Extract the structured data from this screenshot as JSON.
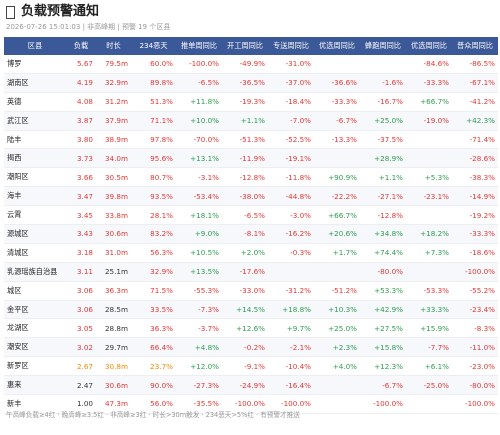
{
  "header": {
    "title": "负载预警通知",
    "subtitle": "2026-07-26 15:01:03 | 非高峰期 | 预警 19 个区县"
  },
  "table": {
    "columns": [
      "区县",
      "负载",
      "时长",
      "234恶天",
      "推单周同比",
      "开工周同比",
      "专送周同比",
      "优选周同比",
      "蜂跑周同比",
      "优选周同比",
      "普众周同比"
    ],
    "rows": [
      {
        "name": "博罗",
        "load": "5.67",
        "load_color": "#e53935",
        "duration": "79.5m",
        "duration_color": "#e53935",
        "bad_weather": "60.0%",
        "bad_weather_color": "#e53935",
        "changes": [
          "-100.0%",
          "-49.9%",
          "-31.0%",
          null,
          null,
          "-84.6%",
          "-86.5%"
        ]
      },
      {
        "name": "湖南区",
        "load": "4.19",
        "load_color": "#e53935",
        "duration": "32.9m",
        "duration_color": "#e53935",
        "bad_weather": "89.8%",
        "bad_weather_color": "#e53935",
        "changes": [
          "-6.5%",
          "-36.5%",
          "-37.0%",
          "-36.6%",
          "-1.6%",
          "-33.3%",
          "-67.1%"
        ]
      },
      {
        "name": "英德",
        "load": "4.08",
        "load_color": "#e53935",
        "duration": "31.2m",
        "duration_color": "#e53935",
        "bad_weather": "51.3%",
        "bad_weather_color": "#e53935",
        "changes": [
          "+11.8%",
          "-19.3%",
          "-18.4%",
          "-33.3%",
          "-16.7%",
          "+66.7%",
          "-41.2%"
        ]
      },
      {
        "name": "武江区",
        "load": "3.87",
        "load_color": "#e53935",
        "duration": "37.9m",
        "duration_color": "#e53935",
        "bad_weather": "71.1%",
        "bad_weather_color": "#e53935",
        "changes": [
          "+10.0%",
          "+1.1%",
          "-7.0%",
          "-6.7%",
          "+25.0%",
          "-19.0%",
          "+42.3%"
        ]
      },
      {
        "name": "陆丰",
        "load": "3.80",
        "load_color": "#e53935",
        "duration": "38.9m",
        "duration_color": "#e53935",
        "bad_weather": "97.8%",
        "bad_weather_color": "#e53935",
        "changes": [
          "-70.0%",
          "-51.3%",
          "-52.5%",
          "-13.3%",
          "-37.5%",
          null,
          "-71.4%"
        ]
      },
      {
        "name": "揭西",
        "load": "3.73",
        "load_color": "#e53935",
        "duration": "34.0m",
        "duration_color": "#e53935",
        "bad_weather": "95.6%",
        "bad_weather_color": "#e53935",
        "changes": [
          "+13.1%",
          "-11.9%",
          "-19.1%",
          null,
          "+28.9%",
          null,
          "-28.6%"
        ]
      },
      {
        "name": "潮阳区",
        "load": "3.66",
        "load_color": "#e53935",
        "duration": "30.5m",
        "duration_color": "#e53935",
        "bad_weather": "80.7%",
        "bad_weather_color": "#e53935",
        "changes": [
          "-3.1%",
          "-12.8%",
          "-11.8%",
          "+90.9%",
          "+1.1%",
          "+5.3%",
          "-38.3%"
        ]
      },
      {
        "name": "海丰",
        "load": "3.47",
        "load_color": "#e53935",
        "duration": "39.8m",
        "duration_color": "#e53935",
        "bad_weather": "93.5%",
        "bad_weather_color": "#e53935",
        "changes": [
          "-53.4%",
          "-38.0%",
          "-44.8%",
          "-22.2%",
          "-27.1%",
          "-23.1%",
          "-14.9%"
        ]
      },
      {
        "name": "云霄",
        "load": "3.45",
        "load_color": "#e53935",
        "duration": "33.8m",
        "duration_color": "#e53935",
        "bad_weather": "28.1%",
        "bad_weather_color": "#e53935",
        "changes": [
          "+18.1%",
          "-6.5%",
          "-3.0%",
          "+66.7%",
          "-12.8%",
          null,
          "-19.2%"
        ]
      },
      {
        "name": "源城区",
        "load": "3.43",
        "load_color": "#e53935",
        "duration": "30.6m",
        "duration_color": "#e53935",
        "bad_weather": "83.2%",
        "bad_weather_color": "#e53935",
        "changes": [
          "+9.0%",
          "-8.1%",
          "-16.2%",
          "+20.6%",
          "+34.8%",
          "+18.2%",
          "-33.3%"
        ]
      },
      {
        "name": "清城区",
        "load": "3.18",
        "load_color": "#e53935",
        "duration": "31.0m",
        "duration_color": "#e53935",
        "bad_weather": "56.3%",
        "bad_weather_color": "#e53935",
        "changes": [
          "+10.5%",
          "+2.0%",
          "-0.3%",
          "+1.7%",
          "+74.4%",
          "+7.3%",
          "-18.6%"
        ]
      },
      {
        "name": "乳源瑶族自治县",
        "load": "3.11",
        "load_color": "#e53935",
        "duration": "25.1m",
        "duration_color": "#333333",
        "bad_weather": "32.9%",
        "bad_weather_color": "#e53935",
        "changes": [
          "+13.5%",
          "-17.6%",
          null,
          null,
          "-80.0%",
          null,
          "-100.0%"
        ]
      },
      {
        "name": "城区",
        "load": "3.06",
        "load_color": "#e53935",
        "duration": "36.3m",
        "duration_color": "#e53935",
        "bad_weather": "71.5%",
        "bad_weather_color": "#e53935",
        "changes": [
          "-55.3%",
          "-33.0%",
          "-31.2%",
          "-51.2%",
          "+53.3%",
          "-53.3%",
          "-55.2%"
        ]
      },
      {
        "name": "金平区",
        "load": "3.06",
        "load_color": "#e53935",
        "duration": "28.5m",
        "duration_color": "#333333",
        "bad_weather": "33.5%",
        "bad_weather_color": "#e53935",
        "changes": [
          "-7.3%",
          "+14.5%",
          "+18.8%",
          "+10.3%",
          "+42.9%",
          "+33.3%",
          "-23.4%"
        ]
      },
      {
        "name": "龙湖区",
        "load": "3.05",
        "load_color": "#e53935",
        "duration": "28.8m",
        "duration_color": "#333333",
        "bad_weather": "36.3%",
        "bad_weather_color": "#e53935",
        "changes": [
          "-3.7%",
          "+12.6%",
          "+9.7%",
          "+25.0%",
          "+27.5%",
          "+15.9%",
          "-8.3%"
        ]
      },
      {
        "name": "潮安区",
        "load": "3.02",
        "load_color": "#e53935",
        "duration": "29.7m",
        "duration_color": "#333333",
        "bad_weather": "66.4%",
        "bad_weather_color": "#e53935",
        "changes": [
          "+4.8%",
          "-0.2%",
          "-2.1%",
          "+2.3%",
          "+15.8%",
          "-7.7%",
          "-11.0%"
        ]
      },
      {
        "name": "新罗区",
        "load": "2.67",
        "load_color": "#f08c00",
        "duration": "30.8m",
        "duration_color": "#f08c00",
        "bad_weather": "23.7%",
        "bad_weather_color": "#f08c00",
        "changes": [
          "+12.0%",
          "-9.1%",
          "-10.4%",
          "+4.0%",
          "+12.3%",
          "+6.1%",
          "-23.0%"
        ]
      },
      {
        "name": "惠来",
        "load": "2.47",
        "load_color": "#333333",
        "duration": "30.6m",
        "duration_color": "#e53935",
        "bad_weather": "90.0%",
        "bad_weather_color": "#e53935",
        "changes": [
          "-27.3%",
          "-24.9%",
          "-16.4%",
          null,
          "-6.7%",
          "-25.0%",
          "-80.0%"
        ]
      },
      {
        "name": "新丰",
        "load": "1.00",
        "load_color": "#333333",
        "duration": "47.3m",
        "duration_color": "#e53935",
        "bad_weather": "56.0%",
        "bad_weather_color": "#e53935",
        "changes": [
          "-35.5%",
          "-100.0%",
          "-100.0%",
          null,
          "-100.0%",
          null,
          "-100.0%"
        ]
      }
    ]
  },
  "footer": "午高峰负载≥4红 · 晚高峰≥3.5红 · 非高峰≥3红 · 时长>30m触发 · 234恶天>5%红 · 有预警才推送"
}
